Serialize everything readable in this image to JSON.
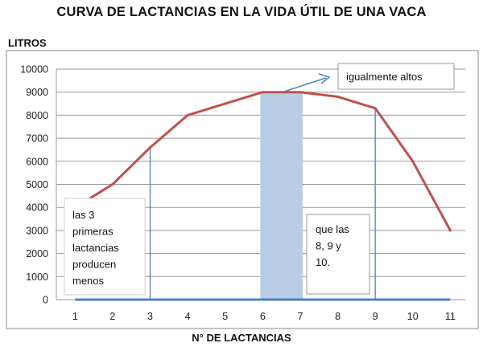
{
  "chart_data": {
    "type": "line",
    "title": "CURVA DE LACTANCIAS EN LA VIDA ÚTIL DE UNA VACA",
    "ylabel": "LITROS",
    "xlabel": "N° DE LACTANCIAS",
    "x": [
      1,
      2,
      3,
      4,
      5,
      6,
      7,
      8,
      9,
      10,
      11
    ],
    "ylim": [
      0,
      10000
    ],
    "yticks": [
      0,
      1000,
      2000,
      3000,
      4000,
      5000,
      6000,
      7000,
      8000,
      9000,
      10000
    ],
    "grid": true,
    "series": [
      {
        "values": [
          4000,
          5000,
          6600,
          8000,
          8500,
          9000,
          9000,
          8800,
          8300,
          6000,
          3000
        ]
      }
    ],
    "highlight_band": {
      "x_from": 6,
      "x_to": 7,
      "color": "#b8cce4"
    },
    "reference_lines": [
      3,
      9
    ],
    "annotations": {
      "left_note": [
        "las 3",
        "primeras",
        "lactancias",
        "producen",
        "menos"
      ],
      "right_note": [
        "que las",
        "8, 9 y",
        "10."
      ],
      "callout": "igualmente altos"
    },
    "colors": {
      "line": "#c0504d",
      "baseline": "#4f81bd",
      "band": "#b8cce4",
      "refline": "#4f81bd"
    }
  }
}
